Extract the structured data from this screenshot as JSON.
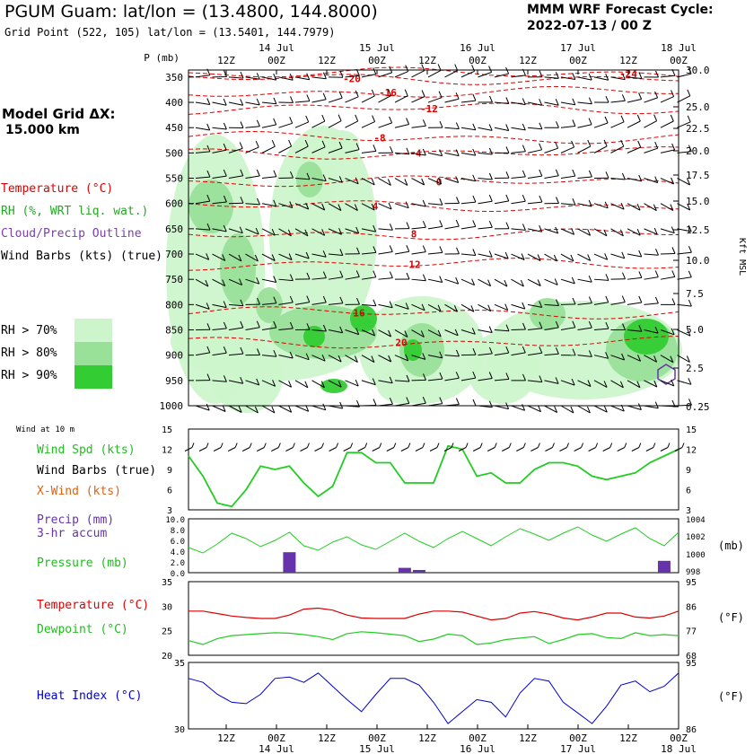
{
  "header": {
    "title": "PGUM Guam:  lat/lon = (13.4800, 144.8000)",
    "subtitle": "Grid Point (522, 105) lat/lon = (13.5401, 144.7979)",
    "cycle_line1": "MMM WRF Forecast Cycle:",
    "cycle_line2": "2022-07-13 / 00  Z"
  },
  "left_panel": {
    "grid_line1": "Model Grid ΔX:",
    "grid_line2": "15.000 km",
    "legend": {
      "temperature": "Temperature (°C)",
      "rh": "RH (%, WRT liq. wat.)",
      "cloud": "Cloud/Precip Outline",
      "barbs": "Wind Barbs (kts) (true)"
    },
    "rh_boxes": [
      {
        "label": "RH > 70%",
        "color": "#ccf5cc"
      },
      {
        "label": "RH > 80%",
        "color": "#99e099"
      },
      {
        "label": "RH > 90%",
        "color": "#33cc33"
      }
    ],
    "wind10m": "Wind at 10 m",
    "wind_spd": "Wind Spd (kts)",
    "wind_barbs": "Wind Barbs (true)",
    "xwind": "X-Wind (kts)",
    "precip_line1": "Precip (mm)",
    "precip_line2": "3-hr accum",
    "pressure": "Pressure (mb)",
    "temperature": "Temperature (°C)",
    "dewpoint": "Dewpoint (°C)",
    "heat_index": "Heat Index (°C)"
  },
  "colors": {
    "temp": "#dd0000",
    "green": "#22cc22",
    "purple": "#6633aa",
    "orange": "#e06010",
    "blue": "#0000cc",
    "contour_label": "#dd0000"
  },
  "time_axis": {
    "top_hours": [
      "12Z",
      "00Z",
      "12Z",
      "00Z",
      "12Z",
      "00Z",
      "12Z",
      "00Z",
      "12Z",
      "00Z"
    ],
    "top_days": [
      "14 Jul",
      "15 Jul",
      "16 Jul",
      "17 Jul",
      "18 Jul"
    ],
    "bottom_hours": [
      "12Z",
      "00Z",
      "12Z",
      "00Z",
      "12Z",
      "00Z",
      "12Z",
      "00Z",
      "12Z",
      "00Z"
    ],
    "bottom_days": [
      "14 Jul",
      "15 Jul",
      "16 Jul",
      "17 Jul",
      "18 Jul"
    ]
  },
  "chart_data": [
    {
      "type": "heatmap",
      "name": "sounding",
      "ylabel": "P (mb)",
      "y2label": "Kft MSL",
      "pressure_levels": [
        "350",
        "400",
        "450",
        "500",
        "550",
        "600",
        "650",
        "700",
        "750",
        "800",
        "850",
        "900",
        "950",
        "1000"
      ],
      "height_ticks": [
        "30.0",
        "25.0",
        "22.5",
        "20.0",
        "17.5",
        "15.0",
        "12.5",
        "10.0",
        "7.5",
        "5.0",
        "2.5",
        "0.25"
      ],
      "contour_labels": [
        {
          "text": "-24",
          "p": 343
        },
        {
          "text": "-20",
          "p": 353
        },
        {
          "text": "-16",
          "p": 380
        },
        {
          "text": "-12",
          "p": 412
        },
        {
          "text": "-8",
          "p": 470
        },
        {
          "text": "-4",
          "p": 500
        },
        {
          "text": "0",
          "p": 557
        },
        {
          "text": "4",
          "p": 605
        },
        {
          "text": "8",
          "p": 660
        },
        {
          "text": "12",
          "p": 720
        },
        {
          "text": "16",
          "p": 816
        },
        {
          "text": "20",
          "p": 875
        }
      ]
    },
    {
      "type": "line",
      "name": "wind",
      "y_ticks_left": [
        "15",
        "12",
        "9",
        "6",
        "3"
      ],
      "y_ticks_right": [
        "15",
        "12",
        "9",
        "6",
        "3"
      ],
      "ylim": [
        3,
        15
      ],
      "series": [
        {
          "name": "Wind Spd (kts)",
          "values": [
            11,
            8,
            4,
            3.5,
            6,
            9.5,
            9,
            9.5,
            7,
            5,
            6.5,
            11.5,
            11.5,
            10,
            10,
            7,
            7,
            7,
            12.5,
            12,
            8,
            8.5,
            7,
            7,
            9,
            10,
            10,
            9.5,
            8,
            7.5,
            8,
            8.5,
            10,
            11,
            12
          ]
        }
      ]
    },
    {
      "type": "bar",
      "name": "precip_pressure",
      "y_ticks_left": [
        "10.0",
        "8.0",
        "6.0",
        "4.0",
        "2.0",
        "0.0"
      ],
      "y_ticks_right": [
        "1004",
        "1002",
        "1000",
        "998"
      ],
      "y2label": "(mb)",
      "precip_mm": [
        0,
        0,
        0,
        0,
        0,
        0,
        0,
        3.8,
        0,
        0,
        0,
        0,
        0,
        0,
        0,
        0.9,
        0.5,
        0,
        0,
        0,
        0,
        0,
        0,
        0,
        0,
        0,
        0,
        0,
        0,
        0,
        0,
        0,
        0,
        2.2,
        0
      ],
      "pressure_mb": [
        1000.8,
        1000.2,
        1001.2,
        1002.4,
        1001.8,
        1000.9,
        1001.6,
        1002.5,
        1001.0,
        1000.5,
        1001.4,
        1002.0,
        1001.1,
        1000.6,
        1001.5,
        1002.4,
        1001.5,
        1000.8,
        1001.8,
        1002.6,
        1001.8,
        1001.0,
        1002.0,
        1002.9,
        1002.3,
        1001.6,
        1002.4,
        1003.1,
        1002.2,
        1001.5,
        1002.3,
        1003.0,
        1001.8,
        1001.0,
        1002.5
      ]
    },
    {
      "type": "line",
      "name": "temp_dew",
      "y_ticks_left": [
        "35",
        "30",
        "25",
        "20"
      ],
      "y_ticks_right": [
        "95",
        "86",
        "77",
        "68"
      ],
      "y2label": "(°F)",
      "ylim": [
        20,
        35
      ],
      "series": [
        {
          "name": "Temperature (°C)",
          "values": [
            29,
            29,
            28.5,
            28,
            27.7,
            27.5,
            27.5,
            28.2,
            29.4,
            29.6,
            29.2,
            28.2,
            27.6,
            27.5,
            27.5,
            27.5,
            28.4,
            29.0,
            29.0,
            28.8,
            28.0,
            27.2,
            27.5,
            28.6,
            28.9,
            28.4,
            27.6,
            27.2,
            27.8,
            28.6,
            28.6,
            27.8,
            27.6,
            28.0,
            29.0
          ]
        },
        {
          "name": "Dewpoint (°C)",
          "values": [
            23,
            22.2,
            23.4,
            24.0,
            24.2,
            24.4,
            24.6,
            24.5,
            24.2,
            23.8,
            23.2,
            24.4,
            24.8,
            24.6,
            24.3,
            24.0,
            22.8,
            23.3,
            24.3,
            24.0,
            22.2,
            22.5,
            23.2,
            23.5,
            23.8,
            22.4,
            23.2,
            24.2,
            24.4,
            23.6,
            23.4,
            24.6,
            24.0,
            24.2,
            24.0
          ]
        }
      ]
    },
    {
      "type": "line",
      "name": "heat_index",
      "y_ticks_left": [
        "35",
        "30"
      ],
      "y_ticks_right": [
        "95",
        "86"
      ],
      "y2label": "(°F)",
      "ylim": [
        30,
        35
      ],
      "series": [
        {
          "name": "Heat Index (°C)",
          "values": [
            33.8,
            33.5,
            32.6,
            32.0,
            31.9,
            32.6,
            33.8,
            33.9,
            33.5,
            34.2,
            33.2,
            32.2,
            31.3,
            32.6,
            33.8,
            33.8,
            33.3,
            32.0,
            30.4,
            31.3,
            32.2,
            32.0,
            30.9,
            32.7,
            33.8,
            33.6,
            32.0,
            31.2,
            30.4,
            31.7,
            33.3,
            33.6,
            32.8,
            33.2,
            34.2
          ]
        }
      ]
    }
  ]
}
